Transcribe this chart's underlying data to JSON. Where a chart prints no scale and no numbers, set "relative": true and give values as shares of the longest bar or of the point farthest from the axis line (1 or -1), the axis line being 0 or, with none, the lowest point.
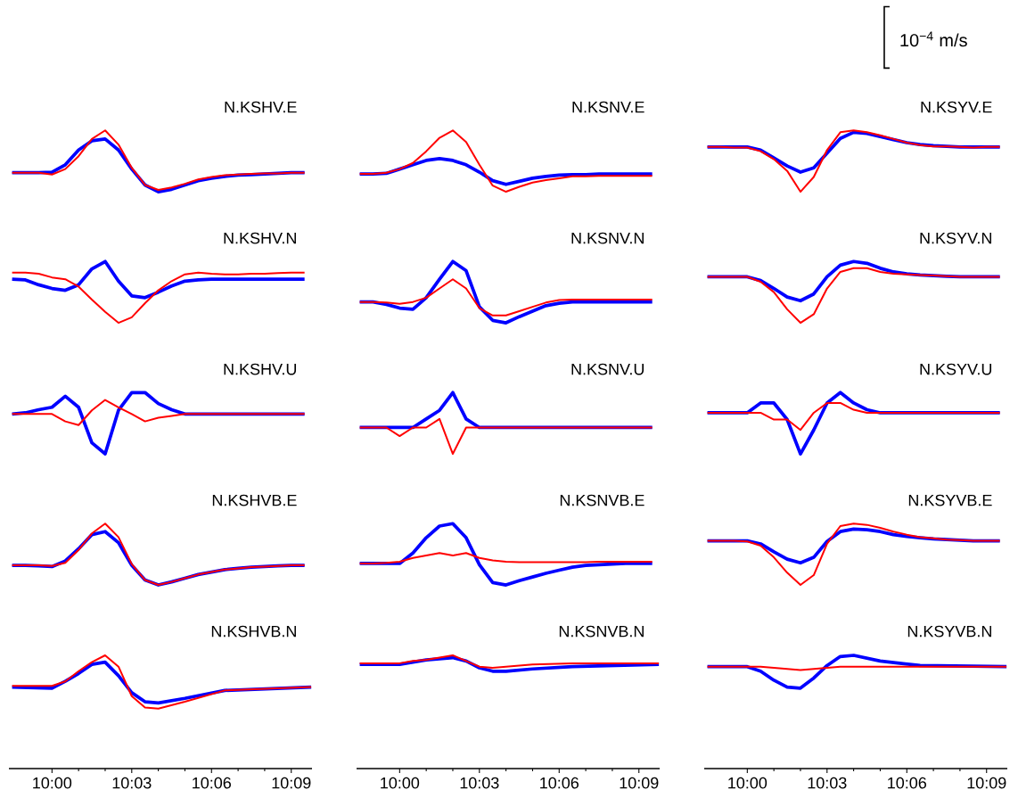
{
  "chart_data": [
    {
      "type": "line",
      "title": "N.KSHV.E",
      "relative": true,
      "tick_labels": false,
      "categories": [
        null,
        null,
        null,
        null,
        null,
        null,
        null,
        null,
        null,
        null,
        null,
        null,
        null,
        null,
        null,
        null,
        null,
        null,
        null,
        null,
        null,
        null,
        null
      ],
      "series": [
        {
          "color": "#0000ff",
          "values": [
            0.31,
            0.31,
            0.31,
            0.32,
            0.44,
            0.68,
            0.83,
            0.86,
            0.68,
            0.37,
            0.11,
            0,
            0.04,
            0.11,
            0.18,
            0.22,
            0.25,
            0.27,
            0.28,
            0.29,
            0.3,
            0.31,
            0.31
          ]
        },
        {
          "color": "#ff0000",
          "values": [
            0.31,
            0.31,
            0.31,
            0.28,
            0.37,
            0.58,
            0.86,
            1,
            0.77,
            0.39,
            0.11,
            0.03,
            0.07,
            0.13,
            0.2,
            0.24,
            0.27,
            0.28,
            0.29,
            0.3,
            0.3,
            0.31,
            0.31
          ]
        }
      ]
    },
    {
      "type": "line",
      "title": "N.KSNV.E",
      "relative": true,
      "tick_labels": false,
      "categories": [
        null,
        null,
        null,
        null,
        null,
        null,
        null,
        null,
        null,
        null,
        null,
        null,
        null,
        null,
        null,
        null,
        null,
        null,
        null,
        null,
        null,
        null,
        null
      ],
      "series": [
        {
          "color": "#0000ff",
          "values": [
            0.29,
            0.29,
            0.3,
            0.37,
            0.44,
            0.51,
            0.54,
            0.51,
            0.44,
            0.32,
            0.18,
            0.12,
            0.17,
            0.22,
            0.25,
            0.27,
            0.28,
            0.28,
            0.29,
            0.29,
            0.29,
            0.29,
            0.29
          ]
        },
        {
          "color": "#ff0000",
          "values": [
            0.29,
            0.29,
            0.31,
            0.37,
            0.47,
            0.66,
            0.88,
            1,
            0.81,
            0.44,
            0.1,
            0,
            0.08,
            0.15,
            0.19,
            0.22,
            0.25,
            0.25,
            0.26,
            0.26,
            0.26,
            0.26,
            0.26
          ]
        }
      ]
    },
    {
      "type": "line",
      "title": "N.KSYV.E",
      "relative": true,
      "tick_labels": false,
      "annotations": [
        "10$^{−4}$ m/s"
      ],
      "categories": [
        null,
        null,
        null,
        null,
        null,
        null,
        null,
        null,
        null,
        null,
        null,
        null,
        null,
        null,
        null,
        null,
        null,
        null,
        null,
        null,
        null,
        null,
        null
      ],
      "series": [
        {
          "color": "#0000ff",
          "values": [
            0.73,
            0.73,
            0.73,
            0.73,
            0.68,
            0.55,
            0.42,
            0.32,
            0.39,
            0.63,
            0.87,
            0.97,
            0.95,
            0.9,
            0.85,
            0.8,
            0.77,
            0.75,
            0.74,
            0.73,
            0.73,
            0.73,
            0.73
          ]
        },
        {
          "color": "#ff0000",
          "values": [
            0.73,
            0.73,
            0.72,
            0.72,
            0.66,
            0.53,
            0.34,
            0,
            0.24,
            0.68,
            0.97,
            1,
            0.97,
            0.92,
            0.86,
            0.8,
            0.76,
            0.74,
            0.74,
            0.73,
            0.72,
            0.73,
            0.73
          ]
        }
      ]
    },
    {
      "type": "line",
      "title": "N.KSHV.N",
      "relative": true,
      "tick_labels": false,
      "categories": [
        null,
        null,
        null,
        null,
        null,
        null,
        null,
        null,
        null,
        null,
        null,
        null,
        null,
        null,
        null,
        null,
        null,
        null,
        null,
        null,
        null,
        null,
        null
      ],
      "series": [
        {
          "color": "#0000ff",
          "values": [
            0.71,
            0.7,
            0.62,
            0.56,
            0.53,
            0.62,
            0.88,
            1,
            0.68,
            0.44,
            0.41,
            0.5,
            0.6,
            0.68,
            0.7,
            0.71,
            0.71,
            0.71,
            0.71,
            0.71,
            0.71,
            0.71,
            0.71
          ]
        },
        {
          "color": "#ff0000",
          "values": [
            0.82,
            0.82,
            0.8,
            0.74,
            0.71,
            0.59,
            0.38,
            0.18,
            0,
            0.09,
            0.32,
            0.53,
            0.68,
            0.79,
            0.82,
            0.8,
            0.79,
            0.79,
            0.8,
            0.8,
            0.81,
            0.82,
            0.82
          ]
        }
      ]
    },
    {
      "type": "line",
      "title": "N.KSNV.N",
      "relative": true,
      "tick_labels": false,
      "categories": [
        null,
        null,
        null,
        null,
        null,
        null,
        null,
        null,
        null,
        null,
        null,
        null,
        null,
        null,
        null,
        null,
        null,
        null,
        null,
        null,
        null,
        null,
        null
      ],
      "series": [
        {
          "color": "#0000ff",
          "values": [
            0.34,
            0.34,
            0.3,
            0.24,
            0.22,
            0.41,
            0.71,
            1,
            0.85,
            0.26,
            0.04,
            0,
            0.1,
            0.19,
            0.28,
            0.32,
            0.34,
            0.34,
            0.34,
            0.34,
            0.34,
            0.34,
            0.34
          ]
        },
        {
          "color": "#ff0000",
          "values": [
            0.34,
            0.34,
            0.33,
            0.31,
            0.34,
            0.41,
            0.56,
            0.71,
            0.56,
            0.24,
            0.12,
            0.12,
            0.19,
            0.26,
            0.33,
            0.37,
            0.38,
            0.38,
            0.38,
            0.38,
            0.38,
            0.38,
            0.38
          ]
        }
      ]
    },
    {
      "type": "line",
      "title": "N.KSYV.N",
      "relative": true,
      "tick_labels": false,
      "categories": [
        null,
        null,
        null,
        null,
        null,
        null,
        null,
        null,
        null,
        null,
        null,
        null,
        null,
        null,
        null,
        null,
        null,
        null,
        null,
        null,
        null,
        null,
        null
      ],
      "series": [
        {
          "color": "#0000ff",
          "values": [
            0.75,
            0.75,
            0.75,
            0.75,
            0.69,
            0.56,
            0.42,
            0.36,
            0.47,
            0.75,
            0.94,
            1,
            0.97,
            0.89,
            0.83,
            0.8,
            0.78,
            0.77,
            0.76,
            0.75,
            0.75,
            0.75,
            0.75
          ]
        },
        {
          "color": "#ff0000",
          "values": [
            0.75,
            0.75,
            0.75,
            0.75,
            0.67,
            0.5,
            0.22,
            0,
            0.14,
            0.56,
            0.83,
            0.89,
            0.89,
            0.83,
            0.8,
            0.79,
            0.78,
            0.77,
            0.76,
            0.75,
            0.75,
            0.75,
            0.75
          ]
        }
      ]
    },
    {
      "type": "line",
      "title": "N.KSHV.U",
      "relative": true,
      "tick_labels": false,
      "categories": [
        null,
        null,
        null,
        null,
        null,
        null,
        null,
        null,
        null,
        null,
        null,
        null,
        null,
        null,
        null,
        null,
        null,
        null,
        null,
        null,
        null,
        null,
        null
      ],
      "series": [
        {
          "color": "#0000ff",
          "values": [
            0.65,
            0.67,
            0.72,
            0.76,
            0.94,
            0.76,
            0.18,
            0,
            0.71,
            1,
            1,
            0.82,
            0.72,
            0.65,
            0.65,
            0.65,
            0.65,
            0.65,
            0.65,
            0.65,
            0.65,
            0.65,
            0.65
          ]
        },
        {
          "color": "#ff0000",
          "values": [
            0.65,
            0.65,
            0.65,
            0.65,
            0.53,
            0.47,
            0.71,
            0.88,
            0.76,
            0.65,
            0.53,
            0.59,
            0.62,
            0.65,
            0.65,
            0.65,
            0.65,
            0.65,
            0.65,
            0.65,
            0.65,
            0.65,
            0.65
          ]
        }
      ]
    },
    {
      "type": "line",
      "title": "N.KSNV.U",
      "relative": true,
      "tick_labels": false,
      "categories": [
        null,
        null,
        null,
        null,
        null,
        null,
        null,
        null,
        null,
        null,
        null,
        null,
        null,
        null,
        null,
        null,
        null,
        null,
        null,
        null,
        null,
        null,
        null
      ],
      "series": [
        {
          "color": "#0000ff",
          "values": [
            0.43,
            0.43,
            0.43,
            0.43,
            0.43,
            0.57,
            0.71,
            1,
            0.57,
            0.43,
            0.43,
            0.43,
            0.43,
            0.43,
            0.43,
            0.43,
            0.43,
            0.43,
            0.43,
            0.43,
            0.43,
            0.43,
            0.43
          ]
        },
        {
          "color": "#ff0000",
          "values": [
            0.43,
            0.43,
            0.43,
            0.29,
            0.43,
            0.43,
            0.57,
            0,
            0.43,
            0.43,
            0.43,
            0.43,
            0.43,
            0.43,
            0.43,
            0.43,
            0.43,
            0.43,
            0.43,
            0.43,
            0.43,
            0.43,
            0.43
          ]
        }
      ]
    },
    {
      "type": "line",
      "title": "N.KSYV.U",
      "relative": true,
      "tick_labels": false,
      "categories": [
        null,
        null,
        null,
        null,
        null,
        null,
        null,
        null,
        null,
        null,
        null,
        null,
        null,
        null,
        null,
        null,
        null,
        null,
        null,
        null,
        null,
        null,
        null
      ],
      "series": [
        {
          "color": "#0000ff",
          "values": [
            0.67,
            0.67,
            0.67,
            0.67,
            0.83,
            0.83,
            0.56,
            0,
            0.39,
            0.83,
            1,
            0.83,
            0.72,
            0.67,
            0.67,
            0.67,
            0.67,
            0.67,
            0.67,
            0.67,
            0.67,
            0.67,
            0.67
          ]
        },
        {
          "color": "#ff0000",
          "values": [
            0.67,
            0.67,
            0.67,
            0.67,
            0.67,
            0.56,
            0.56,
            0.39,
            0.67,
            0.83,
            0.83,
            0.72,
            0.67,
            0.67,
            0.67,
            0.67,
            0.67,
            0.67,
            0.67,
            0.67,
            0.67,
            0.67,
            0.67
          ]
        }
      ]
    },
    {
      "type": "line",
      "title": "N.KSHVB.E",
      "relative": true,
      "tick_labels": false,
      "categories": [
        null,
        null,
        null,
        null,
        null,
        null,
        null,
        null,
        null,
        null,
        null,
        null,
        null,
        null,
        null,
        null,
        null,
        null,
        null,
        null,
        null,
        null,
        null
      ],
      "series": [
        {
          "color": "#0000ff",
          "values": [
            0.32,
            0.32,
            0.31,
            0.3,
            0.39,
            0.59,
            0.82,
            0.87,
            0.69,
            0.32,
            0.08,
            0,
            0.05,
            0.11,
            0.17,
            0.21,
            0.25,
            0.27,
            0.29,
            0.3,
            0.31,
            0.32,
            0.32
          ]
        },
        {
          "color": "#ff0000",
          "values": [
            0.32,
            0.32,
            0.32,
            0.31,
            0.36,
            0.57,
            0.84,
            1,
            0.78,
            0.34,
            0.08,
            0,
            0.05,
            0.11,
            0.17,
            0.21,
            0.25,
            0.27,
            0.29,
            0.3,
            0.31,
            0.32,
            0.32
          ]
        }
      ]
    },
    {
      "type": "line",
      "title": "N.KSNVB.E",
      "relative": true,
      "tick_labels": false,
      "categories": [
        null,
        null,
        null,
        null,
        null,
        null,
        null,
        null,
        null,
        null,
        null,
        null,
        null,
        null,
        null,
        null,
        null,
        null,
        null,
        null,
        null,
        null,
        null
      ],
      "series": [
        {
          "color": "#0000ff",
          "values": [
            0.35,
            0.35,
            0.35,
            0.35,
            0.52,
            0.77,
            0.96,
            1,
            0.77,
            0.33,
            0.04,
            0,
            0.07,
            0.13,
            0.19,
            0.24,
            0.29,
            0.32,
            0.33,
            0.34,
            0.35,
            0.35,
            0.35
          ]
        },
        {
          "color": "#ff0000",
          "values": [
            0.35,
            0.35,
            0.36,
            0.38,
            0.44,
            0.48,
            0.52,
            0.48,
            0.52,
            0.44,
            0.4,
            0.38,
            0.37,
            0.37,
            0.37,
            0.37,
            0.37,
            0.37,
            0.38,
            0.38,
            0.38,
            0.38,
            0.38
          ]
        }
      ]
    },
    {
      "type": "line",
      "title": "N.KSYVB.E",
      "relative": true,
      "tick_labels": false,
      "categories": [
        null,
        null,
        null,
        null,
        null,
        null,
        null,
        null,
        null,
        null,
        null,
        null,
        null,
        null,
        null,
        null,
        null,
        null,
        null,
        null,
        null,
        null,
        null
      ],
      "series": [
        {
          "color": "#0000ff",
          "values": [
            0.72,
            0.72,
            0.72,
            0.72,
            0.67,
            0.54,
            0.42,
            0.36,
            0.45,
            0.71,
            0.87,
            0.91,
            0.9,
            0.87,
            0.82,
            0.79,
            0.77,
            0.75,
            0.74,
            0.73,
            0.72,
            0.72,
            0.72
          ]
        },
        {
          "color": "#ff0000",
          "values": [
            0.72,
            0.72,
            0.72,
            0.71,
            0.64,
            0.45,
            0.2,
            0,
            0.16,
            0.67,
            0.96,
            1,
            0.98,
            0.93,
            0.87,
            0.82,
            0.78,
            0.76,
            0.74,
            0.73,
            0.72,
            0.72,
            0.72
          ]
        }
      ]
    },
    {
      "type": "line",
      "title": "N.KSHVB.N",
      "relative": true,
      "xlim": [
        9.973,
        10.163
      ],
      "tick_labels": "x",
      "xticks": [
        {
          "value": 10,
          "label": "10:00"
        },
        {
          "value": 10.05,
          "label": "10:03"
        },
        {
          "value": 10.1,
          "label": "10:06"
        },
        {
          "value": 10.15,
          "label": "10:09"
        }
      ],
      "x": [
        9.975,
        10,
        10.0083,
        10.0167,
        10.025,
        10.0333,
        10.0417,
        10.05,
        10.0583,
        10.0667,
        10.0833,
        10.1083,
        10.1625
      ],
      "series": [
        {
          "color": "#0000ff",
          "values": [
            0.72,
            0.71,
            0.77,
            0.84,
            0.92,
            0.94,
            0.82,
            0.67,
            0.59,
            0.58,
            0.62,
            0.69,
            0.72
          ]
        },
        {
          "color": "#ff0000",
          "values": [
            0.73,
            0.73,
            0.77,
            0.86,
            0.94,
            1,
            0.9,
            0.64,
            0.54,
            0.53,
            0.59,
            0.69,
            0.72
          ]
        }
      ]
    },
    {
      "type": "line",
      "title": "N.KSNVB.N",
      "relative": true,
      "xlim": [
        9.973,
        10.163
      ],
      "tick_labels": "x",
      "xticks": [
        {
          "value": 10,
          "label": "10:00"
        },
        {
          "value": 10.05,
          "label": "10:03"
        },
        {
          "value": 10.1,
          "label": "10:06"
        },
        {
          "value": 10.15,
          "label": "10:09"
        }
      ],
      "x": [
        9.975,
        10,
        10.0083,
        10.0167,
        10.025,
        10.0333,
        10.0417,
        10.05,
        10.0583,
        10.0667,
        10.0833,
        10.1083,
        10.1625
      ],
      "series": [
        {
          "color": "#0000ff",
          "values": [
            0.92,
            0.92,
            0.94,
            0.96,
            0.97,
            0.98,
            0.95,
            0.89,
            0.86,
            0.86,
            0.88,
            0.9,
            0.92
          ]
        },
        {
          "color": "#ff0000",
          "values": [
            0.93,
            0.93,
            0.95,
            0.96,
            0.98,
            1,
            0.95,
            0.9,
            0.89,
            0.9,
            0.92,
            0.93,
            0.93
          ]
        }
      ]
    },
    {
      "type": "line",
      "title": "N.KSYVB.N",
      "relative": true,
      "xlim": [
        9.973,
        10.163
      ],
      "tick_labels": "x",
      "xticks": [
        {
          "value": 10,
          "label": "10:00"
        },
        {
          "value": 10.05,
          "label": "10:03"
        },
        {
          "value": 10.1,
          "label": "10:06"
        },
        {
          "value": 10.15,
          "label": "10:09"
        }
      ],
      "x": [
        9.975,
        10,
        10.0083,
        10.0167,
        10.025,
        10.0333,
        10.0417,
        10.05,
        10.0583,
        10.0667,
        10.0833,
        10.1083,
        10.1625
      ],
      "series": [
        {
          "color": "#0000ff",
          "values": [
            0.9,
            0.9,
            0.86,
            0.78,
            0.72,
            0.71,
            0.8,
            0.91,
            0.99,
            1,
            0.95,
            0.91,
            0.9
          ]
        },
        {
          "color": "#ff0000",
          "values": [
            0.9,
            0.9,
            0.9,
            0.89,
            0.88,
            0.87,
            0.88,
            0.89,
            0.9,
            0.9,
            0.9,
            0.9,
            0.9
          ]
        }
      ]
    }
  ]
}
